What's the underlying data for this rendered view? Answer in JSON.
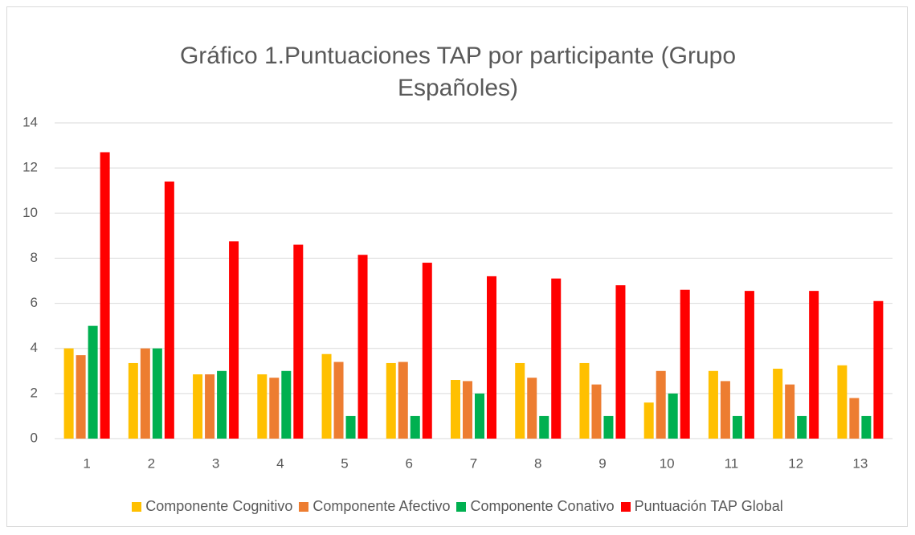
{
  "chart_data": {
    "type": "bar",
    "title": "Gráfico 1.Puntuaciones TAP por participante (Grupo Españoles)",
    "categories": [
      "1",
      "2",
      "3",
      "4",
      "5",
      "6",
      "7",
      "8",
      "9",
      "10",
      "11",
      "12",
      "13"
    ],
    "series": [
      {
        "name": "Componente Cognitivo",
        "color": "#ffc000",
        "values": [
          4,
          3.35,
          2.85,
          2.85,
          3.75,
          3.35,
          2.6,
          3.35,
          3.35,
          1.6,
          3,
          3.1,
          3.25
        ]
      },
      {
        "name": "Componente Afectivo",
        "color": "#ed7d31",
        "values": [
          3.7,
          4,
          2.85,
          2.7,
          3.4,
          3.4,
          2.55,
          2.7,
          2.4,
          3,
          2.55,
          2.4,
          1.8
        ]
      },
      {
        "name": "Componente Conativo",
        "color": "#00b050",
        "values": [
          5,
          4,
          3,
          3,
          1,
          1,
          2,
          1,
          1,
          2,
          1,
          1,
          1
        ]
      },
      {
        "name": "Puntuación TAP Global",
        "color": "#ff0000",
        "values": [
          12.7,
          11.4,
          8.75,
          8.6,
          8.15,
          7.8,
          7.2,
          7.1,
          6.8,
          6.6,
          6.55,
          6.55,
          6.1
        ]
      }
    ],
    "ylim": [
      0,
      14
    ],
    "yticks": [
      0,
      2,
      4,
      6,
      8,
      10,
      12,
      14
    ],
    "grid": true,
    "legend": "bottom"
  }
}
